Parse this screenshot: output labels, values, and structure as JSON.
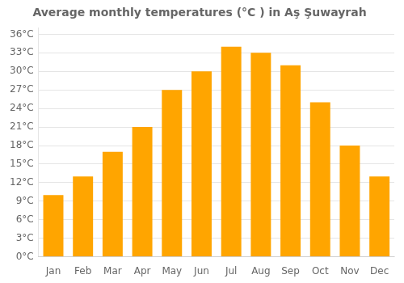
{
  "chart_data": {
    "type": "bar",
    "title": "Average monthly temperatures (°C ) in Aş Şuwayrah",
    "categories": [
      "Jan",
      "Feb",
      "Mar",
      "Apr",
      "May",
      "Jun",
      "Jul",
      "Aug",
      "Sep",
      "Oct",
      "Nov",
      "Dec"
    ],
    "values": [
      10,
      13,
      17,
      21,
      27,
      30,
      34,
      33,
      31,
      25,
      18,
      13
    ],
    "color": "#FFA500",
    "ylim": [
      0,
      37
    ],
    "yticks": [
      {
        "value": 0,
        "label": "0°C"
      },
      {
        "value": 3,
        "label": "3°C"
      },
      {
        "value": 6,
        "label": "6°C"
      },
      {
        "value": 9,
        "label": "9°C"
      },
      {
        "value": 12,
        "label": "12°C"
      },
      {
        "value": 15,
        "label": "15°C"
      },
      {
        "value": 18,
        "label": "18°C"
      },
      {
        "value": 21,
        "label": "21°C"
      },
      {
        "value": 24,
        "label": "24°C"
      },
      {
        "value": 27,
        "label": "27°C"
      },
      {
        "value": 30,
        "label": "30°C"
      },
      {
        "value": 33,
        "label": "33°C"
      },
      {
        "value": 36,
        "label": "36°C"
      }
    ],
    "grid": true
  }
}
